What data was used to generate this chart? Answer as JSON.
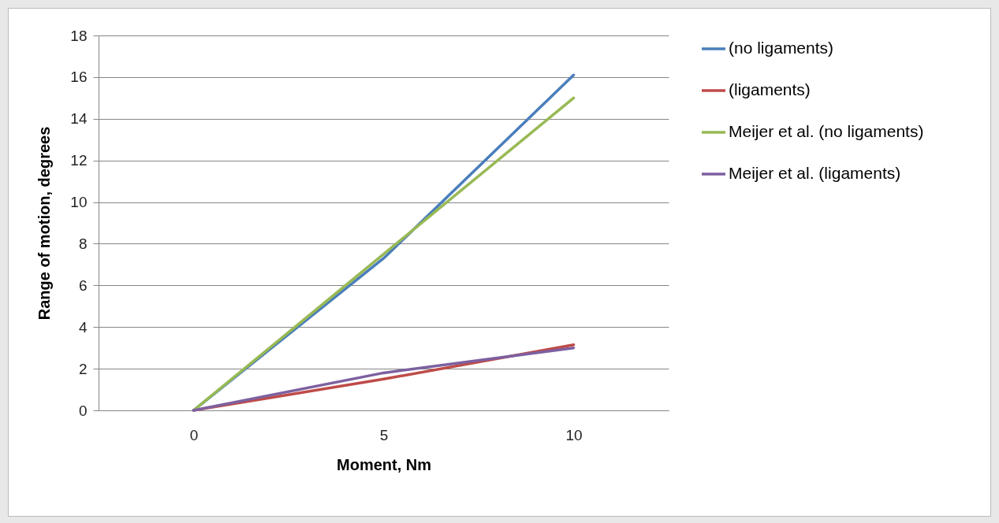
{
  "chart_data": {
    "type": "line",
    "xlabel": "Moment, Nm",
    "ylabel": "Range of motion, degrees",
    "categories": [
      "0",
      "5",
      "10"
    ],
    "series": [
      {
        "name": "(no ligaments)",
        "color": "#4a7ebb",
        "values": [
          0,
          7.3,
          16.1
        ]
      },
      {
        "name": "(ligaments)",
        "color": "#be4b48",
        "values": [
          0,
          1.5,
          3.15
        ]
      },
      {
        "name": "Meijer et al. (no ligaments)",
        "color": "#98b954",
        "values": [
          0,
          7.5,
          15
        ]
      },
      {
        "name": "Meijer et al. (ligaments)",
        "color": "#7d60a0",
        "values": [
          0,
          1.8,
          3
        ]
      }
    ],
    "ylim": [
      0,
      18
    ],
    "yticks": [
      0,
      2,
      4,
      6,
      8,
      10,
      12,
      14,
      16,
      18
    ],
    "grid": "y",
    "legend": "right",
    "marker": "none",
    "line_style": "solid"
  }
}
